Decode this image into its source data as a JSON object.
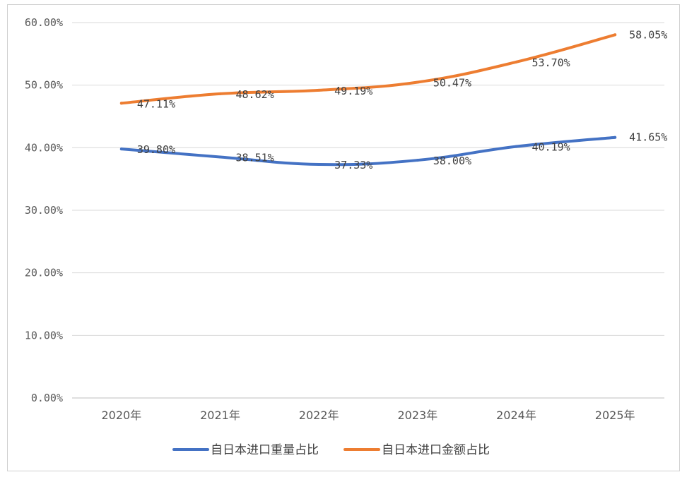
{
  "chart_data": {
    "type": "line",
    "categories": [
      "2020年",
      "2021年",
      "2022年",
      "2023年",
      "2024年",
      "2025年"
    ],
    "series": [
      {
        "name": "自日本进口重量占比",
        "color": "#4472C4",
        "values": [
          39.8,
          38.51,
          37.33,
          38.0,
          40.19,
          41.65
        ],
        "labels": [
          "39.80%",
          "38.51%",
          "37.33%",
          "38.00%",
          "40.19%",
          "41.65%"
        ]
      },
      {
        "name": "自日本进口金额占比",
        "color": "#ED7D31",
        "values": [
          47.11,
          48.62,
          49.19,
          50.47,
          53.7,
          58.05
        ],
        "labels": [
          "47.11%",
          "48.62%",
          "49.19%",
          "50.47%",
          "53.70%",
          "58.05%"
        ]
      }
    ],
    "yticks": [
      "0.00%",
      "10.00%",
      "20.00%",
      "30.00%",
      "40.00%",
      "50.00%",
      "60.00%"
    ],
    "ylim": [
      0,
      60
    ],
    "grid": true,
    "legend_position": "bottom",
    "title": "",
    "xlabel": "",
    "ylabel": ""
  }
}
